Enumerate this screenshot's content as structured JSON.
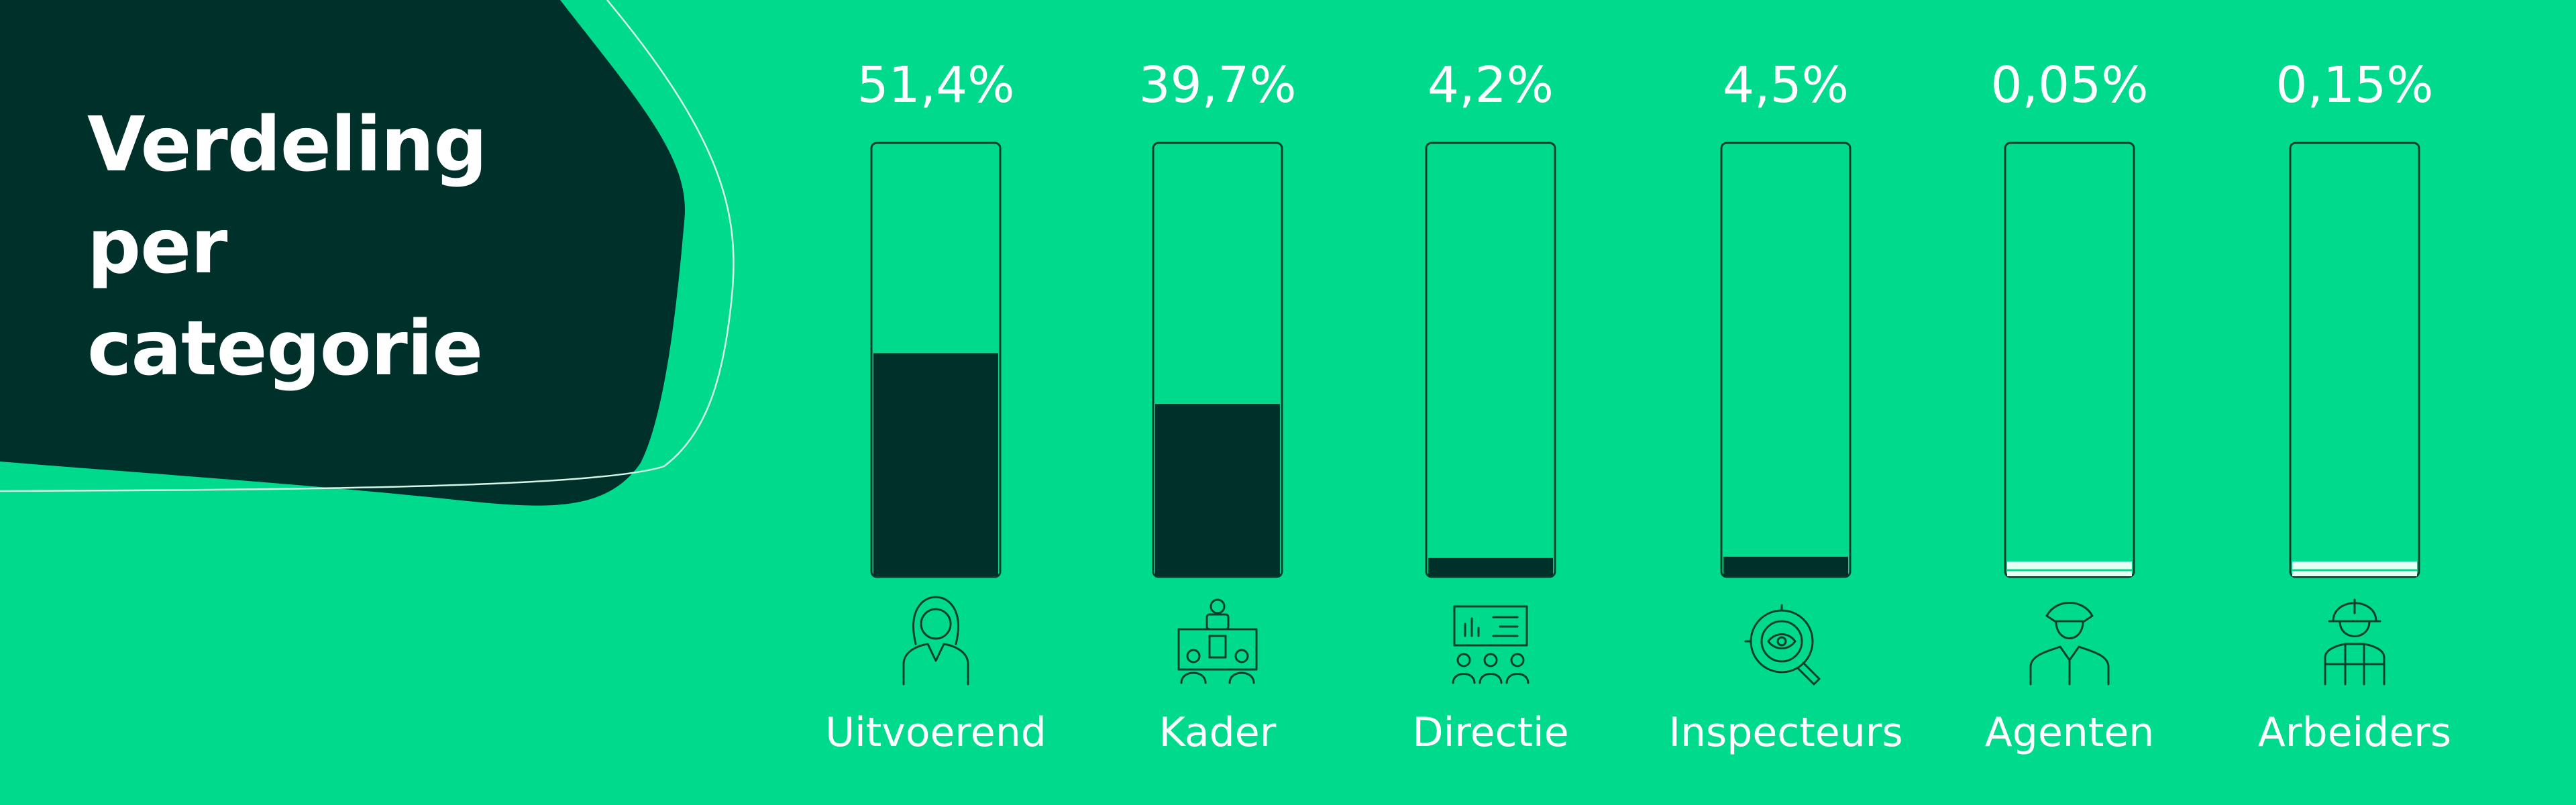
{
  "colors": {
    "background": "#00DA8C",
    "dark": "#00302A",
    "outline": "#0A3F2B",
    "low_fill": "#E6FFF4",
    "white": "#FFFFFF"
  },
  "chart_data": {
    "type": "bar",
    "title": "Verdeling per categorie",
    "title_lines": [
      "Verdeling",
      "per",
      "categorie"
    ],
    "categories": [
      "Uitvoerend",
      "Kader",
      "Directie",
      "Inspecteurs",
      "Agenten",
      "Arbeiders"
    ],
    "values": [
      51.4,
      39.7,
      4.2,
      4.5,
      0.05,
      0.15
    ],
    "value_labels": [
      "51,4%",
      "39,7%",
      "4,2%",
      "4,5%",
      "0,05%",
      "0,15%"
    ],
    "icons": [
      "employee-woman-icon",
      "presentation-meeting-icon",
      "board-audience-icon",
      "magnifier-eye-icon",
      "police-officer-icon",
      "construction-worker-icon"
    ],
    "unit": "%",
    "ylim": [
      0,
      100
    ],
    "grid": false,
    "legend": "none"
  }
}
